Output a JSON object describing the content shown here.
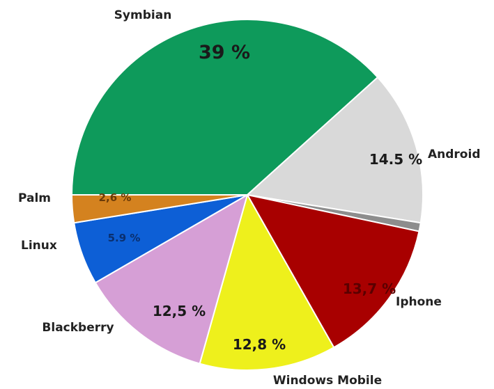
{
  "chart_data": {
    "type": "pie",
    "slices": [
      {
        "name": "Symbian",
        "value": 39,
        "display": "39 %",
        "color": "#0e9a5b"
      },
      {
        "name": "Android",
        "value": 14.5,
        "display": "14.5 %",
        "color": "#d9d9d9"
      },
      {
        "name": "",
        "value": 0.8,
        "display": "",
        "color": "#8d8d8d"
      },
      {
        "name": "Iphone",
        "value": 13.7,
        "display": "13,7 %",
        "color": "#a80000"
      },
      {
        "name": "Windows Mobile",
        "value": 12.8,
        "display": "12,8 %",
        "color": "#eef01c"
      },
      {
        "name": "Blackberry",
        "value": 12.5,
        "display": "12,5 %",
        "color": "#d69fd6"
      },
      {
        "name": "Linux",
        "value": 5.9,
        "display": "5.9 %",
        "color": "#0d5fd6"
      },
      {
        "name": "Palm",
        "value": 2.6,
        "display": "2,6 %",
        "color": "#d4821f"
      }
    ],
    "start_angle_deg": 180,
    "direction": "clockwise",
    "legend": "none"
  }
}
